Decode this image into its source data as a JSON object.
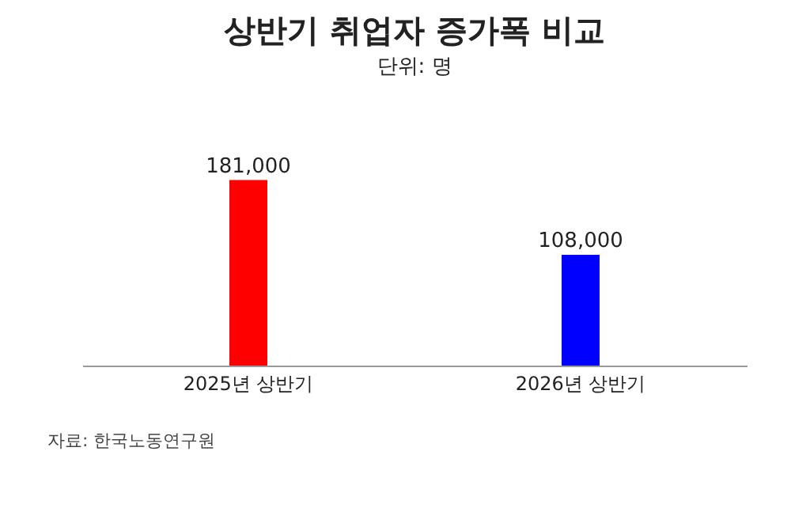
{
  "chart_data": {
    "type": "bar",
    "title": "상반기 취업자 증가폭 비교",
    "subtitle": "단위: 명",
    "categories": [
      "2025년 상반기",
      "2026년 상반기"
    ],
    "values": [
      181000,
      108000
    ],
    "colors": [
      "#ff0000",
      "#0000ff"
    ],
    "value_labels": [
      "181,000",
      "108,000"
    ],
    "annotations": [
      "자료: 한국노동연구원"
    ],
    "grid": false
  }
}
